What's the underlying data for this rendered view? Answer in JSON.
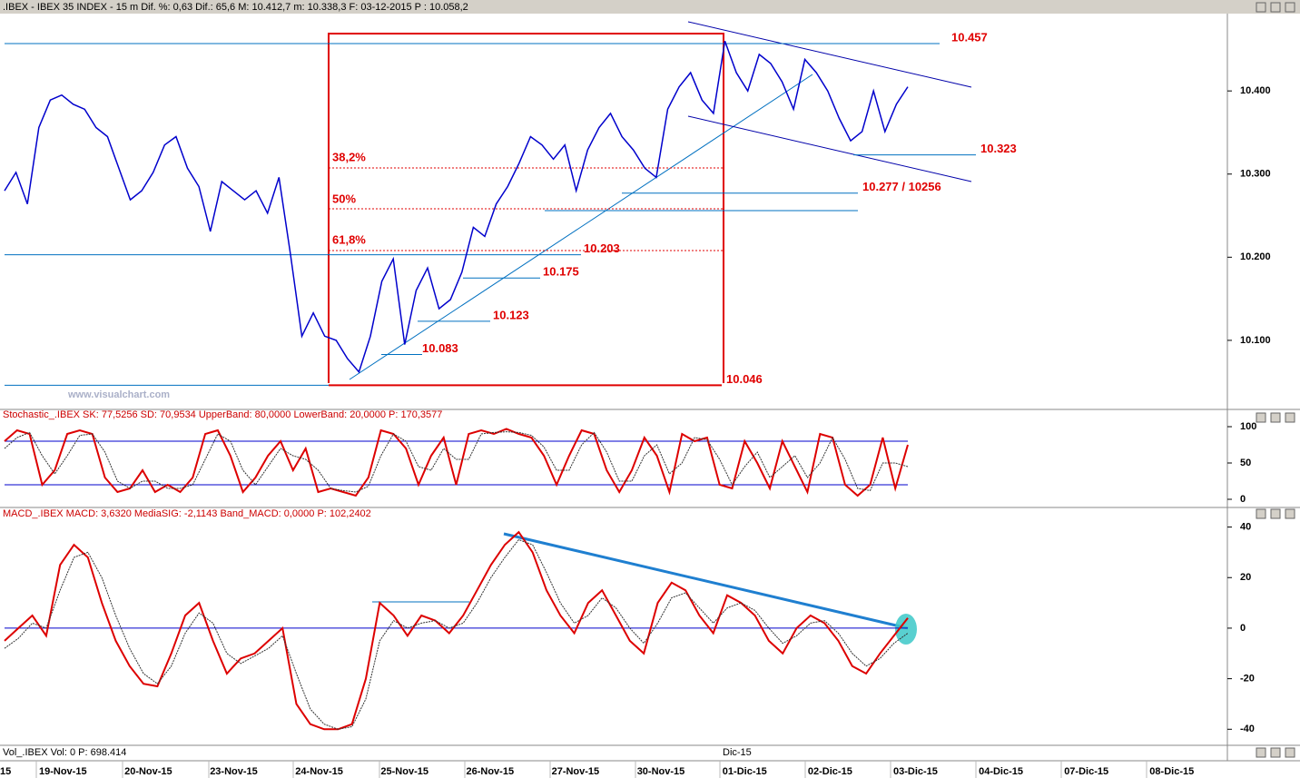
{
  "header": ".IBEX - IBEX 35 INDEX - 15 m Dif. %: 0,63 Dif.: 65,6 M: 10.412,7 m: 10.338,3 F: 03-12-2015 P : 10.058,2",
  "watermark": "www.visualchart.com",
  "volume_label": "Vol_.IBEX Vol: 0 P: 698.414",
  "month_label": "Dic-15",
  "x_labels": [
    "15",
    "19-Nov-15",
    "20-Nov-15",
    "23-Nov-15",
    "24-Nov-15",
    "25-Nov-15",
    "26-Nov-15",
    "27-Nov-15",
    "30-Nov-15",
    "01-Dic-15",
    "02-Dic-15",
    "03-Dic-15",
    "04-Dic-15",
    "07-Dic-15",
    "08-Dic-15"
  ],
  "fibonacci": [
    "38,2%",
    "50%",
    "61,8%"
  ],
  "chart_data": [
    {
      "type": "line",
      "title": "IBEX 35 INDEX",
      "ylim": [
        10018,
        10493
      ],
      "yticks": [
        {
          "value": 10100,
          "label": "10.100"
        },
        {
          "value": 10200,
          "label": "10.200"
        },
        {
          "value": 10300,
          "label": "10.300"
        },
        {
          "value": 10400,
          "label": "10.400"
        }
      ],
      "series": [
        {
          "name": "IBEX",
          "color": "#0000cc",
          "values": [
            10280,
            10302,
            10264,
            10356,
            10389,
            10395,
            10384,
            10378,
            10356,
            10345,
            10307,
            10269,
            10280,
            10302,
            10335,
            10345,
            10307,
            10285,
            10231,
            10291,
            10280,
            10269,
            10280,
            10253,
            10296,
            10204,
            10105,
            10133,
            10105,
            10100,
            10078,
            10062,
            10105,
            10171,
            10198,
            10095,
            10160,
            10187,
            10138,
            10149,
            10182,
            10236,
            10225,
            10264,
            10285,
            10313,
            10345,
            10335,
            10318,
            10335,
            10280,
            10329,
            10356,
            10373,
            10345,
            10329,
            10307,
            10296,
            10378,
            10405,
            10422,
            10389,
            10373,
            10460,
            10422,
            10400,
            10444,
            10433,
            10411,
            10378,
            10438,
            10422,
            10400,
            10367,
            10340,
            10351,
            10400,
            10351,
            10384,
            10405
          ]
        }
      ],
      "levels": [
        {
          "label": "10.457",
          "values": [
            10457
          ]
        },
        {
          "label": "10.323",
          "values": [
            10323
          ]
        },
        {
          "label": "10.277 / 10256",
          "values": [
            10277,
            10256
          ]
        },
        {
          "label": "10.203",
          "values": [
            10203
          ]
        },
        {
          "label": "10.175",
          "values": [
            10175
          ]
        },
        {
          "label": "10.123",
          "values": [
            10123
          ]
        },
        {
          "label": "10.083",
          "values": [
            10083
          ]
        },
        {
          "label": "10.046",
          "values": [
            10046
          ]
        }
      ]
    },
    {
      "type": "line",
      "title": "Stochastic_.IBEX SK: 77,5256 SD: 70,9534 UpperBand: 80,0000 LowerBand: 20,0000 P: 170,3577",
      "ylim": [
        -5,
        105
      ],
      "yticks": [
        0,
        50,
        100
      ],
      "bands": [
        80,
        20
      ],
      "series": [
        {
          "name": "SK",
          "color": "#dd0000",
          "values": [
            80,
            95,
            90,
            20,
            40,
            90,
            95,
            90,
            30,
            10,
            15,
            40,
            10,
            20,
            10,
            30,
            90,
            95,
            60,
            10,
            30,
            60,
            80,
            40,
            70,
            10,
            15,
            10,
            5,
            30,
            95,
            90,
            70,
            20,
            60,
            85,
            20,
            90,
            95,
            90,
            97,
            90,
            85,
            60,
            20,
            60,
            95,
            90,
            40,
            10,
            40,
            85,
            60,
            10,
            90,
            80,
            85,
            20,
            15,
            80,
            50,
            15,
            80,
            45,
            10,
            90,
            85,
            20,
            5,
            20,
            85,
            15,
            75
          ]
        },
        {
          "name": "SD",
          "color": "#333333",
          "values": [
            70,
            85,
            92,
            60,
            35,
            60,
            88,
            90,
            65,
            25,
            15,
            25,
            25,
            15,
            15,
            20,
            55,
            90,
            80,
            40,
            20,
            45,
            70,
            60,
            55,
            40,
            15,
            12,
            10,
            18,
            60,
            90,
            80,
            45,
            40,
            70,
            55,
            55,
            90,
            92,
            93,
            92,
            88,
            72,
            40,
            40,
            75,
            92,
            65,
            25,
            25,
            60,
            75,
            35,
            50,
            85,
            82,
            55,
            20,
            45,
            65,
            30,
            45,
            60,
            30,
            50,
            85,
            55,
            15,
            12,
            50,
            50,
            45
          ]
        }
      ]
    },
    {
      "type": "line",
      "title": "MACD_.IBEX MACD: 3,6320 MediaSIG: -2,1143 Band_MACD: 0,0000 P: 102,2402",
      "ylim": [
        -46,
        42
      ],
      "yticks": [
        -40,
        -20,
        0,
        20,
        40
      ],
      "bands": [
        0
      ],
      "series": [
        {
          "name": "MACD",
          "color": "#dd0000",
          "values": [
            -5,
            0,
            5,
            -3,
            25,
            33,
            28,
            10,
            -5,
            -15,
            -22,
            -23,
            -10,
            5,
            10,
            -5,
            -18,
            -12,
            -10,
            -5,
            0,
            -30,
            -38,
            -40,
            -40,
            -38,
            -20,
            10,
            5,
            -3,
            5,
            3,
            -2,
            5,
            15,
            25,
            33,
            38,
            30,
            15,
            5,
            -2,
            10,
            15,
            5,
            -5,
            -10,
            10,
            18,
            15,
            5,
            -2,
            13,
            10,
            5,
            -5,
            -10,
            0,
            5,
            2,
            -5,
            -15,
            -18,
            -10,
            -3,
            4
          ]
        },
        {
          "name": "MediaSIG",
          "color": "#333333",
          "values": [
            -8,
            -4,
            2,
            0,
            15,
            28,
            30,
            20,
            5,
            -8,
            -18,
            -22,
            -15,
            -2,
            6,
            2,
            -10,
            -14,
            -11,
            -8,
            -3,
            -18,
            -32,
            -38,
            -40,
            -39,
            -28,
            -5,
            3,
            0,
            2,
            3,
            0,
            2,
            10,
            20,
            28,
            35,
            33,
            22,
            10,
            2,
            5,
            12,
            8,
            0,
            -6,
            2,
            12,
            14,
            8,
            2,
            8,
            10,
            7,
            0,
            -6,
            -3,
            2,
            3,
            -2,
            -10,
            -15,
            -12,
            -6,
            -2
          ]
        }
      ]
    }
  ]
}
